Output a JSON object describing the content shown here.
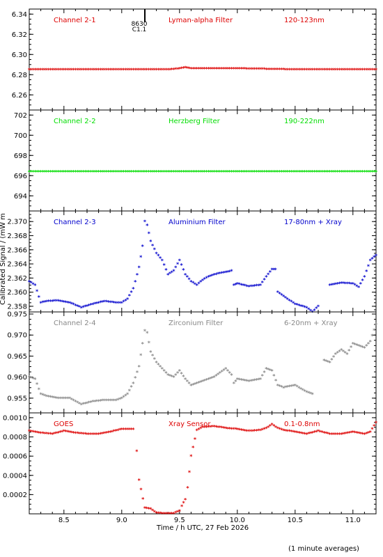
{
  "colors": {
    "channel_2_1": "#dd0000",
    "channel_2_2": "#00dd00",
    "channel_2_3": "#0000cc",
    "channel_2_4": "#888888",
    "goes": "#dd0000",
    "axis": "#000000"
  },
  "xlabel": "Time / h UTC, 27 Feb 2026",
  "ylabel": "Calibrated Signal / (mW m",
  "footnote": "(1 minute averages)",
  "event_marker": {
    "time": 9.2,
    "line1": "8630",
    "line2": "C1.1"
  },
  "chart_data": [
    {
      "type": "scatter",
      "channel": "Channel 2-1",
      "filter": "Lyman-alpha Filter",
      "band": "120-123nm",
      "xlim": [
        8.2,
        11.2
      ],
      "ylim": [
        6.245,
        6.345
      ],
      "yticks": [
        "6.26",
        "6.28",
        "6.30",
        "6.32",
        "6.34"
      ],
      "x": [
        8.2,
        8.5,
        9.0,
        9.4,
        9.5,
        9.55,
        9.6,
        9.7,
        10.0,
        10.5,
        11.0,
        11.2
      ],
      "y": [
        6.285,
        6.285,
        6.285,
        6.285,
        6.286,
        6.287,
        6.286,
        6.286,
        6.286,
        6.285,
        6.285,
        6.285
      ]
    },
    {
      "type": "scatter",
      "channel": "Channel 2-2",
      "filter": "Herzberg Filter",
      "band": "190-222nm",
      "xlim": [
        8.2,
        11.2
      ],
      "ylim": [
        692.5,
        702.5
      ],
      "yticks": [
        "694",
        "696",
        "698",
        "700",
        "702"
      ],
      "x": [
        8.2,
        8.5,
        9.0,
        9.5,
        10.0,
        10.5,
        11.0,
        11.2
      ],
      "y": [
        696.4,
        696.4,
        696.4,
        696.4,
        696.4,
        696.4,
        696.4,
        696.4
      ]
    },
    {
      "type": "scatter",
      "channel": "Channel 2-3",
      "filter": "Aluminium Filter",
      "band": "17-80nm + Xray",
      "xlim": [
        8.2,
        11.2
      ],
      "ylim": [
        2.3572,
        2.3715
      ],
      "yticks": [
        "2.358",
        "2.360",
        "2.362",
        "2.364",
        "2.366",
        "2.368",
        "2.370"
      ],
      "x": [
        8.2,
        8.25,
        8.3,
        8.35,
        8.45,
        8.55,
        8.65,
        8.75,
        8.85,
        8.95,
        9.0,
        9.05,
        9.1,
        9.15,
        9.18,
        9.2,
        9.22,
        9.25,
        9.3,
        9.35,
        9.4,
        9.45,
        9.5,
        9.55,
        9.6,
        9.65,
        9.7,
        9.75,
        9.8,
        9.9,
        9.95,
        9.97,
        10.0,
        10.05,
        10.1,
        10.2,
        10.25,
        10.3,
        10.33,
        10.35,
        10.4,
        10.5,
        10.6,
        10.65,
        10.7,
        10.75,
        10.8,
        10.9,
        11.0,
        11.05,
        11.1,
        11.15,
        11.2
      ],
      "y": [
        2.3615,
        2.361,
        2.3585,
        2.3587,
        2.3588,
        2.3585,
        2.3578,
        2.3583,
        2.3587,
        2.3585,
        2.3585,
        2.359,
        2.3605,
        2.3635,
        2.3665,
        2.37,
        2.3695,
        2.3672,
        2.3655,
        2.3645,
        2.3625,
        2.363,
        2.3645,
        2.3625,
        2.3615,
        2.361,
        2.3617,
        2.3622,
        2.3625,
        2.3628,
        2.363,
        2.361,
        2.3612,
        2.361,
        2.3608,
        2.361,
        2.3622,
        2.3632,
        2.3632,
        2.36,
        2.3594,
        2.3583,
        2.3578,
        2.3572,
        2.358,
        null,
        2.361,
        2.3613,
        2.3612,
        2.3607,
        2.3622,
        2.3645,
        2.3652
      ]
    },
    {
      "type": "scatter",
      "channel": "Channel 2-4",
      "filter": "Zirconium Filter",
      "band": "6-20nm + Xray",
      "xlim": [
        8.2,
        11.2
      ],
      "ylim": [
        0.9515,
        0.9755
      ],
      "yticks": [
        "0.955",
        "0.960",
        "0.965",
        "0.970",
        "0.975"
      ],
      "x": [
        8.2,
        8.25,
        8.3,
        8.35,
        8.45,
        8.55,
        8.65,
        8.75,
        8.85,
        8.95,
        9.0,
        9.05,
        9.1,
        9.15,
        9.18,
        9.2,
        9.22,
        9.25,
        9.3,
        9.35,
        9.4,
        9.45,
        9.5,
        9.55,
        9.6,
        9.7,
        9.8,
        9.9,
        9.95,
        9.97,
        10.0,
        10.1,
        10.2,
        10.25,
        10.3,
        10.35,
        10.4,
        10.5,
        10.6,
        10.65,
        10.7,
        10.75,
        10.8,
        10.85,
        10.9,
        10.95,
        11.0,
        11.05,
        11.1,
        11.15,
        11.2
      ],
      "y": [
        0.96,
        0.9595,
        0.956,
        0.9555,
        0.955,
        0.955,
        0.9535,
        0.9542,
        0.9545,
        0.9545,
        0.955,
        0.956,
        0.9585,
        0.9625,
        0.968,
        0.971,
        0.9705,
        0.966,
        0.9635,
        0.962,
        0.9605,
        0.96,
        0.9615,
        0.9595,
        0.958,
        0.959,
        0.96,
        0.962,
        0.9605,
        0.9585,
        0.9595,
        0.959,
        0.9595,
        0.962,
        0.9615,
        0.958,
        0.9575,
        0.958,
        0.9565,
        0.956,
        null,
        0.964,
        0.9635,
        0.9655,
        0.9665,
        0.9655,
        0.968,
        0.9675,
        0.967,
        0.9685,
        0.9725
      ]
    },
    {
      "type": "scatter",
      "channel": "GOES",
      "filter": "Xray Sensor",
      "band": "0.1-0.8nm",
      "xlim": [
        8.2,
        11.2
      ],
      "ylim": [
        0.0,
        0.00105
      ],
      "yticks": [
        "0.0002",
        "0.0004",
        "0.0006",
        "0.0008",
        "0.0010"
      ],
      "xticks": [
        "8.5",
        "9.0",
        "9.5",
        "10.0",
        "10.5",
        "11.0"
      ],
      "x": [
        8.2,
        8.3,
        8.4,
        8.5,
        8.6,
        8.7,
        8.8,
        8.9,
        9.0,
        9.05,
        9.1,
        9.12,
        9.13,
        9.15,
        9.2,
        9.25,
        9.3,
        9.35,
        9.4,
        9.45,
        9.5,
        9.52,
        9.55,
        9.57,
        9.6,
        9.65,
        9.7,
        9.8,
        9.9,
        10.0,
        10.1,
        10.2,
        10.25,
        10.3,
        10.35,
        10.4,
        10.5,
        10.6,
        10.7,
        10.8,
        10.9,
        11.0,
        11.1,
        11.15,
        11.2
      ],
      "y": [
        0.00086,
        0.00084,
        0.00083,
        0.00086,
        0.00084,
        0.00083,
        0.00083,
        0.00085,
        0.00088,
        0.00088,
        0.00088,
        null,
        0.00065,
        0.00035,
        6e-05,
        5e-05,
        1e-05,
        5e-06,
        5e-06,
        5e-06,
        3e-05,
        8e-05,
        0.00015,
        0.00027,
        0.0006,
        0.00087,
        0.0009,
        0.00091,
        0.00089,
        0.00088,
        0.00086,
        0.00087,
        0.00089,
        0.00093,
        0.00089,
        0.00087,
        0.00085,
        0.00083,
        0.00086,
        0.00083,
        0.00083,
        0.00085,
        0.00083,
        0.00085,
        0.00095
      ]
    }
  ]
}
